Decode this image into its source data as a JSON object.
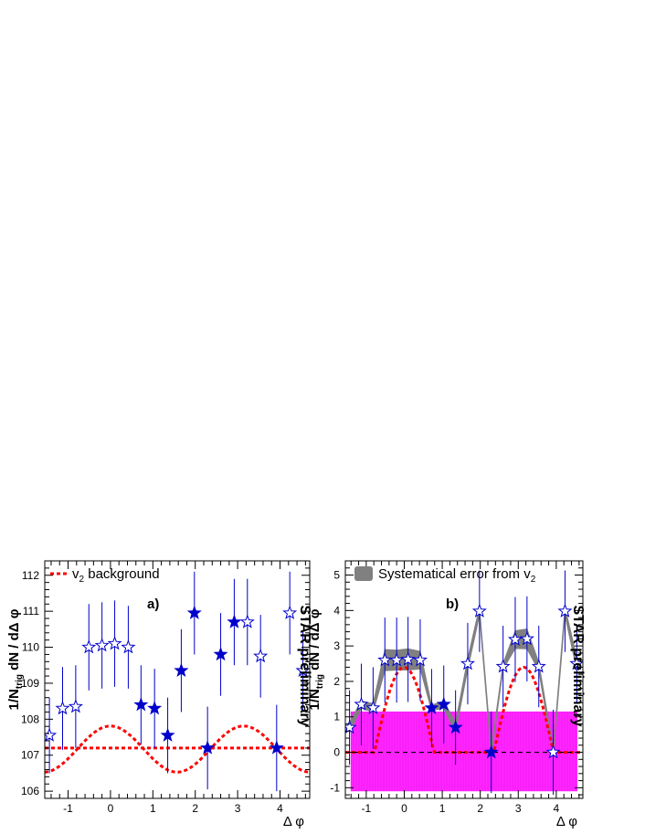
{
  "chart_data": [
    {
      "panel_label": "a)",
      "type": "scatter",
      "xlabel": "Δ φ",
      "ylabel": "1/N_trig dN / dΔ φ",
      "ylabel_parts": [
        "1/N",
        "trig",
        " dN / dΔ φ"
      ],
      "watermark": "STAR preliminary",
      "xlim": [
        -1.55,
        4.7
      ],
      "ylim": [
        105.8,
        112.4
      ],
      "x_ticks": [
        -1,
        0,
        1,
        2,
        3,
        4
      ],
      "y_ticks": [
        106,
        107,
        108,
        109,
        110,
        111,
        112
      ],
      "legend": {
        "position": "top-left",
        "entries": [
          {
            "text": "v",
            "sub": "2",
            "rest": " background",
            "style": "red-dashed"
          }
        ]
      },
      "series": [
        {
          "marker": "open-star",
          "x": [
            -1.44,
            -1.13,
            -0.82,
            -0.51,
            -0.2,
            0.1,
            0.42
          ],
          "y": [
            107.55,
            108.3,
            108.35,
            110.0,
            110.05,
            110.1,
            110.0
          ],
          "err": [
            1.05,
            1.15,
            1.15,
            1.2,
            1.2,
            1.2,
            1.15
          ]
        },
        {
          "marker": "filled-star",
          "x": [
            0.72,
            1.04,
            1.35,
            1.67,
            1.98,
            2.29,
            2.6,
            2.92,
            3.92
          ],
          "y": [
            108.4,
            108.3,
            107.55,
            109.35,
            110.95,
            107.2,
            109.8,
            110.7,
            107.2
          ],
          "err": [
            1.1,
            1.1,
            1.05,
            1.15,
            1.15,
            1.15,
            1.15,
            1.2,
            1.2
          ]
        },
        {
          "marker": "open-star",
          "x": [
            3.23,
            3.54,
            4.23,
            4.54
          ],
          "y": [
            110.7,
            109.75,
            110.95,
            109.35
          ],
          "err": [
            1.2,
            1.15,
            1.15,
            1.1
          ]
        }
      ],
      "curves": [
        {
          "style": "red-dashed",
          "shape": "cos2",
          "mean": 107.17,
          "amplitude": 0.64
        },
        {
          "style": "red-dashed",
          "shape": "flat",
          "value": 107.2
        }
      ]
    },
    {
      "panel_label": "b)",
      "type": "scatter",
      "xlabel": "Δ φ",
      "ylabel": "1/N_trig dN / dΔ φ",
      "ylabel_parts": [
        "1/N",
        "trig",
        " dN / dΔ φ"
      ],
      "watermark": "STAR preliminary",
      "xlim": [
        -1.55,
        4.7
      ],
      "ylim": [
        -1.3,
        5.4
      ],
      "x_ticks": [
        -1,
        0,
        1,
        2,
        3,
        4
      ],
      "y_ticks": [
        -1,
        0,
        1,
        2,
        3,
        4,
        5
      ],
      "legend": {
        "position": "top-left",
        "entries": [
          {
            "text": "Systematical error from v",
            "sub": "2",
            "rest": "",
            "style": "gray-band"
          }
        ]
      },
      "points": {
        "x": [
          -1.44,
          -1.13,
          -0.82,
          -0.51,
          -0.2,
          0.1,
          0.42,
          0.72,
          1.04,
          1.35,
          1.67,
          1.98,
          2.29,
          2.6,
          2.92,
          3.23,
          3.54,
          3.92,
          4.23,
          4.54
        ],
        "y": [
          0.7,
          1.35,
          1.25,
          2.6,
          2.6,
          2.62,
          2.6,
          1.25,
          1.35,
          0.7,
          2.5,
          3.98,
          0.0,
          2.42,
          3.18,
          3.2,
          2.42,
          0.0,
          3.98,
          2.5
        ],
        "err": [
          1.05,
          1.15,
          1.15,
          1.2,
          1.2,
          1.2,
          1.15,
          1.1,
          1.1,
          1.05,
          1.15,
          1.15,
          1.15,
          1.15,
          1.2,
          1.2,
          1.15,
          1.2,
          1.15,
          1.1
        ],
        "open": [
          true,
          true,
          true,
          true,
          true,
          true,
          true,
          false,
          false,
          false,
          true,
          true,
          false,
          true,
          true,
          true,
          true,
          true,
          true,
          true
        ]
      },
      "systematic_band_halfwidth": [
        0.15,
        0.1,
        0.12,
        0.3,
        0.28,
        0.3,
        0.25,
        0.08,
        0.1,
        0.14,
        0.15,
        0.12,
        0.1,
        0.08,
        0.25,
        0.28,
        0.12,
        0.1,
        0.12,
        0.18
      ],
      "pink_band": {
        "ylow": -1.1,
        "yhigh": 1.15,
        "color": "#ff00ff"
      },
      "curves": [
        {
          "style": "red-dashed",
          "shape": "cos2",
          "mean": 0.0,
          "amplitude": 2.4,
          "clip_low": 0
        },
        {
          "style": "black-dashed",
          "shape": "flat",
          "value": 0.0
        }
      ]
    }
  ]
}
